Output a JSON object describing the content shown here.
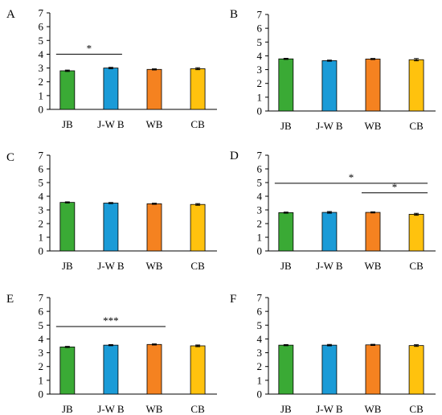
{
  "chart_data": [
    {
      "type": "bar",
      "panel_label": "A",
      "categories": [
        "JB",
        "J-W B",
        "WB",
        "CB"
      ],
      "values": [
        2.8,
        3.0,
        2.9,
        2.95
      ],
      "errors": [
        0.05,
        0.05,
        0.04,
        0.07
      ],
      "colors": [
        "#3aaa35",
        "#1b9bd7",
        "#f58220",
        "#ffc20e"
      ],
      "ylim": [
        0,
        7
      ],
      "yticks": [
        "0",
        "1",
        "2",
        "3",
        "4",
        "5",
        "6",
        "7"
      ],
      "significance": [
        {
          "from": 0,
          "to": 1,
          "y": 4.0,
          "label": "*"
        }
      ]
    },
    {
      "type": "bar",
      "panel_label": "B",
      "categories": [
        "JB",
        "J-W B",
        "WB",
        "CB"
      ],
      "values": [
        3.78,
        3.65,
        3.77,
        3.72
      ],
      "errors": [
        0.04,
        0.04,
        0.04,
        0.08
      ],
      "colors": [
        "#3aaa35",
        "#1b9bd7",
        "#f58220",
        "#ffc20e"
      ],
      "ylim": [
        0,
        7
      ],
      "yticks": [
        "0",
        "1",
        "2",
        "3",
        "4",
        "5",
        "6",
        "7"
      ],
      "significance": []
    },
    {
      "type": "bar",
      "panel_label": "C",
      "categories": [
        "JB",
        "J-W B",
        "WB",
        "CB"
      ],
      "values": [
        3.55,
        3.5,
        3.45,
        3.4
      ],
      "errors": [
        0.04,
        0.04,
        0.04,
        0.06
      ],
      "colors": [
        "#3aaa35",
        "#1b9bd7",
        "#f58220",
        "#ffc20e"
      ],
      "ylim": [
        0,
        7
      ],
      "yticks": [
        "0",
        "1",
        "2",
        "3",
        "4",
        "5",
        "6",
        "7"
      ],
      "significance": []
    },
    {
      "type": "bar",
      "panel_label": "D",
      "categories": [
        "JB",
        "J-W B",
        "WB",
        "CB"
      ],
      "values": [
        2.8,
        2.82,
        2.82,
        2.68
      ],
      "errors": [
        0.04,
        0.06,
        0.04,
        0.07
      ],
      "colors": [
        "#3aaa35",
        "#1b9bd7",
        "#f58220",
        "#ffc20e"
      ],
      "ylim": [
        0,
        7
      ],
      "yticks": [
        "0",
        "1",
        "2",
        "3",
        "4",
        "5",
        "6",
        "7"
      ],
      "significance": [
        {
          "from": 0,
          "to": 3,
          "y": 4.95,
          "label": "*"
        },
        {
          "from": 2,
          "to": 3,
          "y": 4.25,
          "label": "*"
        }
      ]
    },
    {
      "type": "bar",
      "panel_label": "E",
      "categories": [
        "JB",
        "J-W B",
        "WB",
        "CB"
      ],
      "values": [
        3.42,
        3.55,
        3.6,
        3.5
      ],
      "errors": [
        0.04,
        0.04,
        0.04,
        0.06
      ],
      "colors": [
        "#3aaa35",
        "#1b9bd7",
        "#f58220",
        "#ffc20e"
      ],
      "ylim": [
        0,
        7
      ],
      "yticks": [
        "0",
        "1",
        "2",
        "3",
        "4",
        "5",
        "6",
        "7"
      ],
      "significance": [
        {
          "from": 0,
          "to": 2,
          "y": 4.9,
          "label": "***"
        }
      ]
    },
    {
      "type": "bar",
      "panel_label": "F",
      "categories": [
        "JB",
        "J-W B",
        "WB",
        "CB"
      ],
      "values": [
        3.55,
        3.55,
        3.57,
        3.52
      ],
      "errors": [
        0.04,
        0.05,
        0.04,
        0.06
      ],
      "colors": [
        "#3aaa35",
        "#1b9bd7",
        "#f58220",
        "#ffc20e"
      ],
      "ylim": [
        0,
        7
      ],
      "yticks": [
        "0",
        "1",
        "2",
        "3",
        "4",
        "5",
        "6",
        "7"
      ],
      "significance": []
    }
  ]
}
